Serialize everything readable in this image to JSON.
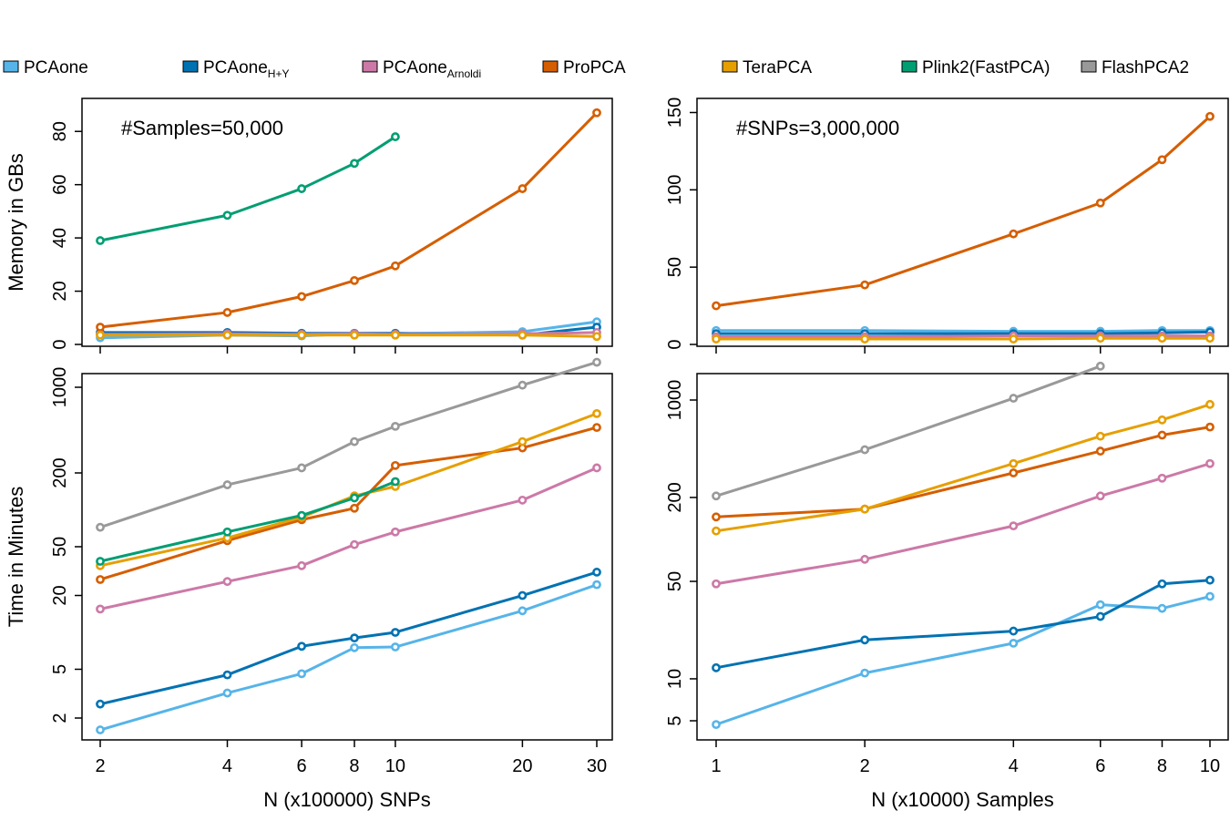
{
  "legend": [
    {
      "name": "PCAone",
      "sub": "",
      "color": "#56B4E9"
    },
    {
      "name": "PCAone",
      "sub": "H+Y",
      "color": "#0072B2"
    },
    {
      "name": "PCAone",
      "sub": "Arnoldi",
      "color": "#CC79A7"
    },
    {
      "name": "ProPCA",
      "sub": "",
      "color": "#D55E00"
    },
    {
      "name": "TeraPCA",
      "sub": "",
      "color": "#E69F00"
    },
    {
      "name": "Plink2(FastPCA)",
      "sub": "",
      "color": "#009E73"
    },
    {
      "name": "FlashPCA2",
      "sub": "",
      "color": "#999999"
    }
  ],
  "chart_data": [
    {
      "type": "line",
      "xscale": "log",
      "yscale": "linear",
      "annotation": "#Samples=50,000",
      "ylabel": "Memory in GBs",
      "xlabel": "",
      "xlim": [
        2,
        30
      ],
      "ylim": [
        0,
        90
      ],
      "xticks": [
        2,
        4,
        6,
        8,
        10,
        20,
        30
      ],
      "yticks": [
        0,
        20,
        40,
        60,
        80
      ],
      "xtick_labels": [],
      "ytick_labels": [
        "0",
        "20",
        "40",
        "60",
        "80"
      ],
      "x": [
        2,
        4,
        6,
        8,
        10,
        20,
        30
      ],
      "series": [
        {
          "name": "PCAone",
          "color": "#56B4E9",
          "values": [
            2.5,
            3.5,
            3.2,
            4.0,
            4.0,
            4.8,
            8.5
          ]
        },
        {
          "name": "PCAone H+Y",
          "color": "#0072B2",
          "values": [
            4.5,
            4.5,
            4.2,
            4.2,
            4.2,
            3.5,
            6.5
          ]
        },
        {
          "name": "PCAone Arnoldi",
          "color": "#CC79A7",
          "values": [
            3.8,
            4.0,
            3.8,
            4.0,
            3.8,
            4.0,
            4.5
          ]
        },
        {
          "name": "ProPCA",
          "color": "#D55E00",
          "values": [
            6.5,
            12.0,
            18.0,
            24.0,
            29.5,
            58.5,
            87.0
          ]
        },
        {
          "name": "TeraPCA",
          "color": "#E69F00",
          "values": [
            3.5,
            3.5,
            3.5,
            3.5,
            3.5,
            3.5,
            3.0
          ]
        },
        {
          "name": "Plink2(FastPCA)",
          "color": "#009E73",
          "values": [
            39.0,
            48.5,
            58.5,
            68.0,
            78.0,
            null,
            null
          ]
        }
      ]
    },
    {
      "type": "line",
      "xscale": "log",
      "yscale": "linear",
      "annotation": "#SNPs=3,000,000",
      "ylabel": "",
      "xlabel": "",
      "xlim": [
        1,
        10
      ],
      "ylim": [
        0,
        155
      ],
      "xticks": [
        1,
        2,
        4,
        6,
        8,
        10
      ],
      "yticks": [
        0,
        50,
        100,
        150
      ],
      "xtick_labels": [],
      "ytick_labels": [
        "0",
        "50",
        "100",
        "150"
      ],
      "x": [
        1,
        2,
        4,
        6,
        8,
        10
      ],
      "series": [
        {
          "name": "PCAone",
          "color": "#56B4E9",
          "values": [
            9.0,
            9.0,
            8.5,
            8.5,
            9.0,
            9.0
          ]
        },
        {
          "name": "PCAone H+Y",
          "color": "#0072B2",
          "values": [
            7.0,
            7.0,
            7.0,
            7.0,
            7.5,
            8.0
          ]
        },
        {
          "name": "PCAone Arnoldi",
          "color": "#CC79A7",
          "values": [
            5.0,
            5.0,
            5.5,
            5.5,
            5.5,
            5.5
          ]
        },
        {
          "name": "ProPCA",
          "color": "#D55E00",
          "values": [
            25.0,
            38.5,
            71.5,
            91.5,
            119.5,
            147.5
          ]
        },
        {
          "name": "TeraPCA",
          "color": "#E69F00",
          "values": [
            3.5,
            3.5,
            3.5,
            4.0,
            4.0,
            4.0
          ]
        }
      ]
    },
    {
      "type": "line",
      "xscale": "log",
      "yscale": "log",
      "annotation": "",
      "ylabel": "Time in Minutes",
      "xlabel": "N (x100000) SNPs",
      "xlim": [
        2,
        30
      ],
      "ylim": [
        1.6,
        1400
      ],
      "xticks": [
        2,
        4,
        6,
        8,
        10,
        20,
        30
      ],
      "yticks": [
        2,
        5,
        20,
        50,
        200,
        1000
      ],
      "xtick_labels": [
        "2",
        "4",
        "6",
        "8",
        "10",
        "20",
        "30"
      ],
      "ytick_labels": [
        "2",
        "5",
        "20",
        "50",
        "200",
        "1000"
      ],
      "x": [
        2,
        4,
        6,
        8,
        10,
        20,
        30
      ],
      "series": [
        {
          "name": "PCAone",
          "color": "#56B4E9",
          "values": [
            1.6,
            3.2,
            4.6,
            7.5,
            7.6,
            15.0,
            24.5
          ]
        },
        {
          "name": "PCAone H+Y",
          "color": "#0072B2",
          "values": [
            2.6,
            4.5,
            7.7,
            9.0,
            10.0,
            20.0,
            31.0
          ]
        },
        {
          "name": "PCAone Arnoldi",
          "color": "#CC79A7",
          "values": [
            15.5,
            26.0,
            35.0,
            52.0,
            66.0,
            120.0,
            220.0
          ]
        },
        {
          "name": "ProPCA",
          "color": "#D55E00",
          "values": [
            27.0,
            56.0,
            83.0,
            103.0,
            230.0,
            320.0,
            470.0
          ]
        },
        {
          "name": "TeraPCA",
          "color": "#E69F00",
          "values": [
            35.0,
            59.0,
            87.0,
            130.0,
            155.0,
            360.0,
            610.0
          ]
        },
        {
          "name": "Plink2(FastPCA)",
          "color": "#009E73",
          "values": [
            38.0,
            66.0,
            90.0,
            125.0,
            170.0,
            null,
            null
          ]
        },
        {
          "name": "FlashPCA2",
          "color": "#999999",
          "values": [
            72.0,
            160.0,
            220.0,
            360.0,
            480.0,
            1040.0,
            1600.0
          ]
        }
      ]
    },
    {
      "type": "line",
      "xscale": "log",
      "yscale": "log",
      "annotation": "",
      "ylabel": "",
      "xlabel": "N (x10000) Samples",
      "xlim": [
        1,
        10
      ],
      "ylim": [
        4.5,
        1600
      ],
      "xticks": [
        1,
        2,
        4,
        6,
        8,
        10
      ],
      "yticks": [
        5,
        10,
        50,
        200,
        1000
      ],
      "xtick_labels": [
        "1",
        "2",
        "4",
        "6",
        "8",
        "10"
      ],
      "ytick_labels": [
        "5",
        "10",
        "50",
        "200",
        "1000"
      ],
      "x": [
        1,
        2,
        4,
        6,
        8,
        10
      ],
      "series": [
        {
          "name": "PCAone",
          "color": "#56B4E9",
          "values": [
            4.7,
            11.0,
            18.0,
            34.0,
            32.0,
            39.0
          ]
        },
        {
          "name": "PCAone H+Y",
          "color": "#0072B2",
          "values": [
            12.0,
            19.0,
            22.0,
            28.0,
            48.0,
            51.0
          ]
        },
        {
          "name": "PCAone Arnoldi",
          "color": "#CC79A7",
          "values": [
            48.0,
            72.0,
            125.0,
            205.0,
            275.0,
            350.0
          ]
        },
        {
          "name": "ProPCA",
          "color": "#D55E00",
          "values": [
            145.0,
            165.0,
            300.0,
            430.0,
            560.0,
            640.0
          ]
        },
        {
          "name": "TeraPCA",
          "color": "#E69F00",
          "values": [
            115.0,
            165.0,
            350.0,
            550.0,
            720.0,
            930.0
          ]
        },
        {
          "name": "FlashPCA2",
          "color": "#999999",
          "values": [
            205.0,
            440.0,
            1030.0,
            1750.0,
            null,
            null
          ]
        }
      ]
    }
  ]
}
